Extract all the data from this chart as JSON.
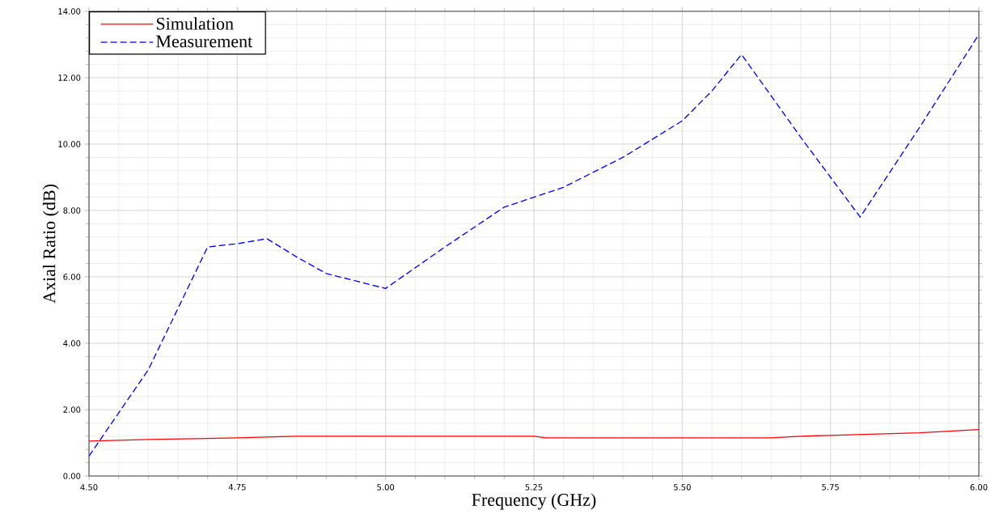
{
  "chart_data": {
    "type": "line",
    "xlabel": "Frequency (GHz)",
    "ylabel": "Axial Ratio (dB)",
    "xlim": [
      4.5,
      6.0
    ],
    "ylim": [
      0,
      14
    ],
    "xticks": [
      {
        "value": 4.5,
        "label": "4.50"
      },
      {
        "value": 4.75,
        "label": "4.75"
      },
      {
        "value": 5.0,
        "label": "5.00"
      },
      {
        "value": 5.25,
        "label": "5.25"
      },
      {
        "value": 5.5,
        "label": "5.50"
      },
      {
        "value": 5.75,
        "label": "5.75"
      },
      {
        "value": 6.0,
        "label": "6.00"
      }
    ],
    "yticks": [
      {
        "value": 0,
        "label": "0.00"
      },
      {
        "value": 2,
        "label": "2.00"
      },
      {
        "value": 4,
        "label": "4.00"
      },
      {
        "value": 6,
        "label": "6.00"
      },
      {
        "value": 8,
        "label": "8.00"
      },
      {
        "value": 10,
        "label": "10.00"
      },
      {
        "value": 12,
        "label": "12.00"
      },
      {
        "value": 14,
        "label": "14.00"
      }
    ],
    "grid": true,
    "legend": "top left",
    "marker": "none",
    "series": [
      {
        "name": "Simulation",
        "color": "#ff0000",
        "line_style": "solid",
        "x": [
          4.5,
          4.6,
          4.75,
          4.85,
          5.25,
          5.27,
          5.65,
          5.7,
          5.8,
          5.9,
          6.0
        ],
        "values": [
          1.05,
          1.1,
          1.15,
          1.2,
          1.2,
          1.15,
          1.15,
          1.2,
          1.25,
          1.3,
          1.4
        ]
      },
      {
        "name": "Measurement",
        "color": "#0000ff",
        "line_style": "dashed",
        "x": [
          4.5,
          4.6,
          4.7,
          4.75,
          4.8,
          4.85,
          4.9,
          5.0,
          5.1,
          5.2,
          5.25,
          5.3,
          5.4,
          5.5,
          5.55,
          5.6,
          5.7,
          5.8,
          5.9,
          6.0
        ],
        "values": [
          0.6,
          3.2,
          6.9,
          7.0,
          7.15,
          6.6,
          6.1,
          5.65,
          6.9,
          8.1,
          8.4,
          8.7,
          9.6,
          10.7,
          11.6,
          12.7,
          10.2,
          7.8,
          10.5,
          13.3
        ]
      }
    ]
  }
}
